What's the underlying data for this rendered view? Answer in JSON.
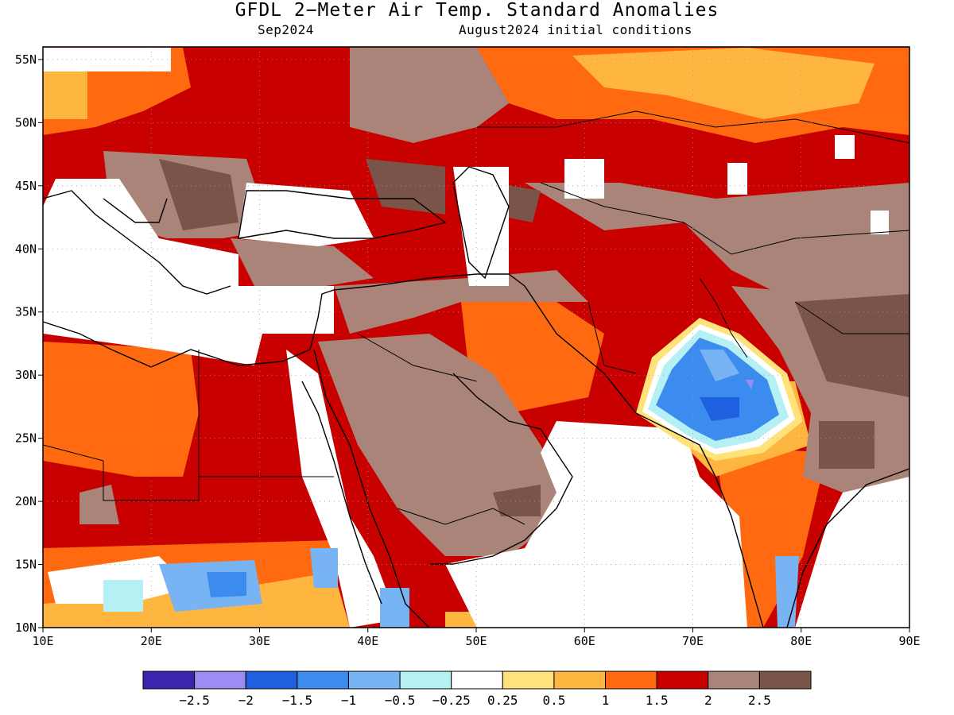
{
  "title": "GFDL 2−Meter Air Temp. Standard Anomalies",
  "subtitle_left": "Sep2024",
  "subtitle_right": "August2024 initial conditions",
  "map": {
    "lon_range": [
      10,
      90
    ],
    "lat_range": [
      10,
      56
    ],
    "lon_ticks": [
      "10E",
      "20E",
      "30E",
      "40E",
      "50E",
      "60E",
      "70E",
      "80E",
      "90E"
    ],
    "lat_ticks": [
      "10N",
      "15N",
      "20N",
      "25N",
      "30N",
      "35N",
      "40N",
      "45N",
      "50N",
      "55N"
    ]
  },
  "colorbar": {
    "colors": [
      "#3a24b0",
      "#9e8cf4",
      "#1f60e0",
      "#3c8cf0",
      "#78b4f4",
      "#b4f0f4",
      "#ffffff",
      "#ffe27a",
      "#ffb640",
      "#ff6a10",
      "#c80000",
      "#aa8478",
      "#7a5448"
    ],
    "labels": [
      "−2.5",
      "−2",
      "−1.5",
      "−1",
      "−0.5",
      "−0.25",
      "0.25",
      "0.5",
      "1",
      "1.5",
      "2",
      "2.5"
    ]
  }
}
